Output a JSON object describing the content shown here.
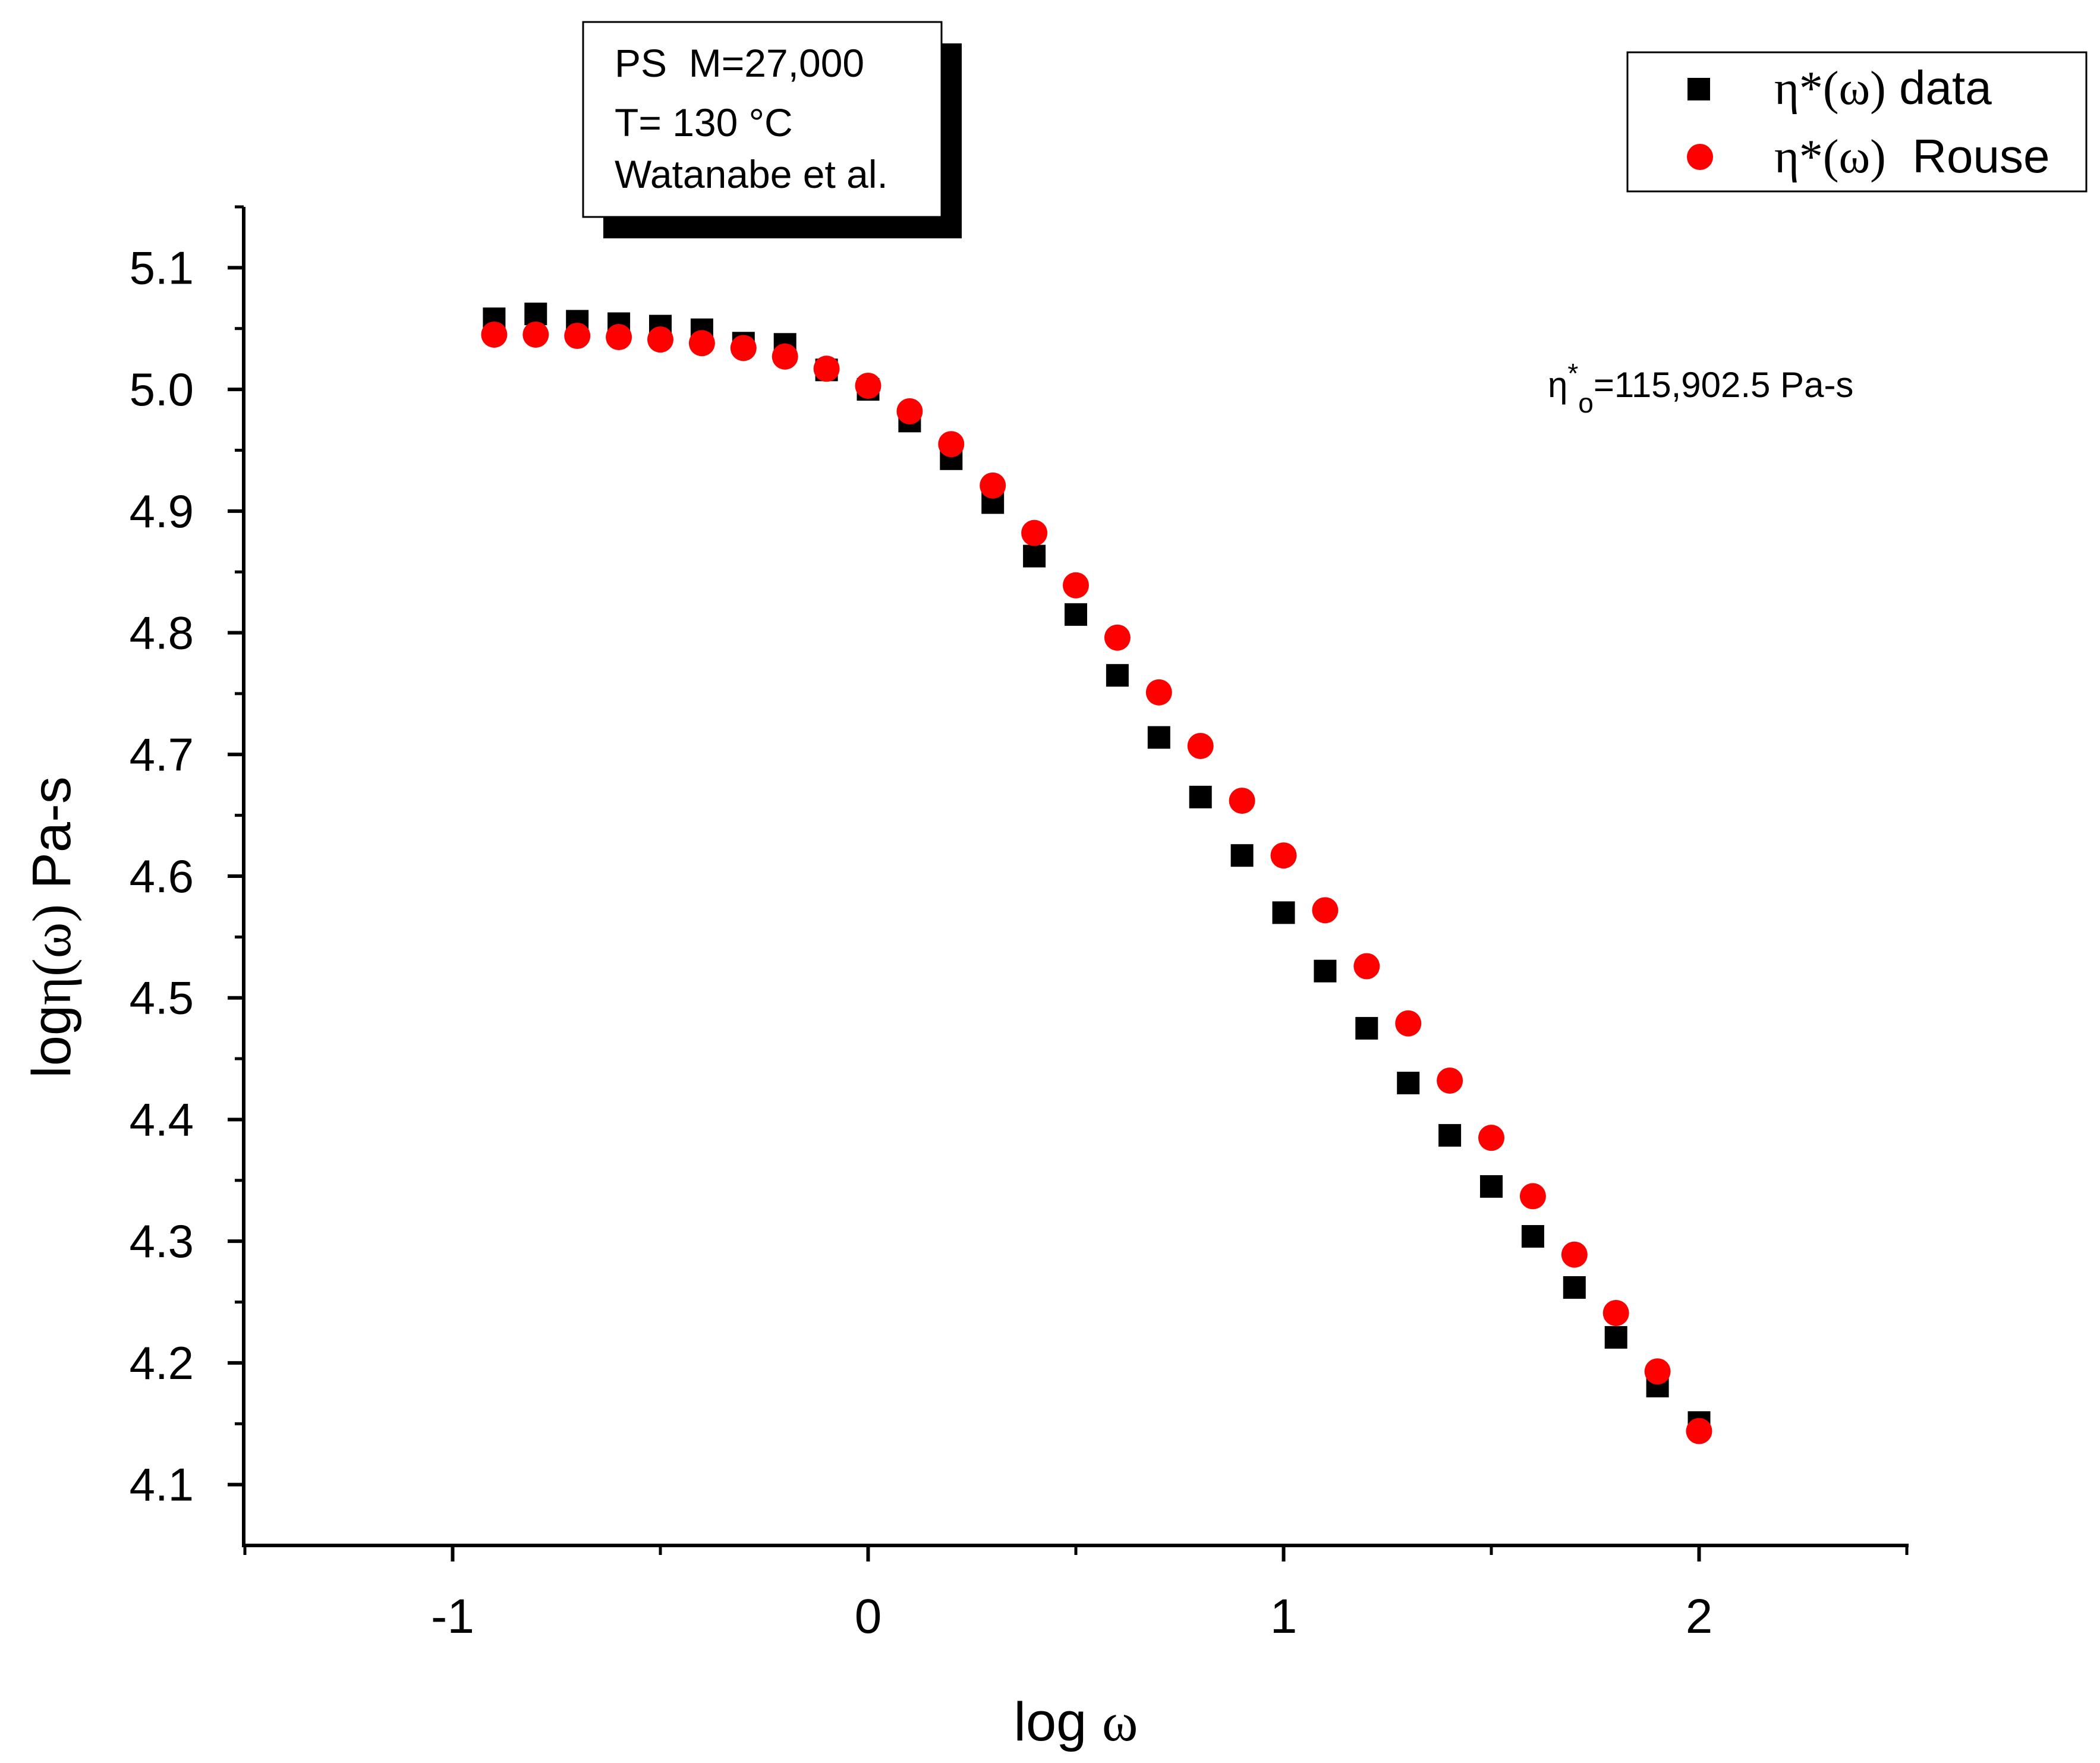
{
  "chart_data": {
    "type": "scatter",
    "title": "",
    "xlabel": {
      "prefix": "log ",
      "symbol": "ω"
    },
    "ylabel": {
      "prefix": "log",
      "symbol": "η(ω)",
      "suffix": " Pa-s"
    },
    "xlim": [
      -1.5,
      2.5
    ],
    "ylim": [
      4.05,
      5.15
    ],
    "x_ticks": [
      -1,
      0,
      1,
      2
    ],
    "x_tick_labels": [
      "-1",
      "0",
      "1",
      "2"
    ],
    "y_ticks": [
      4.1,
      4.2,
      4.3,
      4.4,
      4.5,
      4.6,
      4.7,
      4.8,
      4.9,
      5.0,
      5.1
    ],
    "y_tick_labels": [
      "4.1",
      "4.2",
      "4.3",
      "4.4",
      "4.5",
      "4.6",
      "4.7",
      "4.8",
      "4.9",
      "5.0",
      "5.1"
    ],
    "grid": false,
    "legend_position": "top-right",
    "x": [
      -0.9,
      -0.8,
      -0.7,
      -0.6,
      -0.5,
      -0.4,
      -0.3,
      -0.2,
      -0.1,
      0.0,
      0.1,
      0.2,
      0.3,
      0.4,
      0.5,
      0.6,
      0.7,
      0.8,
      0.9,
      1.0,
      1.1,
      1.2,
      1.3,
      1.4,
      1.5,
      1.6,
      1.7,
      1.8,
      1.9,
      2.0
    ],
    "series": [
      {
        "name": "η*(ω) data",
        "legend_symbol": "η*(ω)",
        "legend_label": "data",
        "marker": "square",
        "color": "#000000",
        "values": [
          5.058,
          5.062,
          5.056,
          5.054,
          5.052,
          5.049,
          5.038,
          5.037,
          5.016,
          5.0,
          4.974,
          4.943,
          4.907,
          4.863,
          4.815,
          4.765,
          4.714,
          4.665,
          4.617,
          4.57,
          4.522,
          4.475,
          4.43,
          4.387,
          4.345,
          4.304,
          4.262,
          4.221,
          4.181,
          4.151
        ]
      },
      {
        "name": "η*(ω) Rouse",
        "legend_symbol": "η*(ω)",
        "legend_label": "Rouse",
        "marker": "circle",
        "color": "#ff0000",
        "values": [
          5.045,
          5.045,
          5.044,
          5.043,
          5.041,
          5.038,
          5.034,
          5.027,
          5.017,
          5.003,
          4.982,
          4.955,
          4.921,
          4.882,
          4.839,
          4.796,
          4.751,
          4.707,
          4.662,
          4.617,
          4.572,
          4.526,
          4.479,
          4.432,
          4.385,
          4.337,
          4.289,
          4.241,
          4.193,
          4.144
        ]
      }
    ],
    "annotations": {
      "info_box": [
        "PS  M=27,000",
        "T= 130 °C",
        "Watanabe et al."
      ],
      "zero_shear": "η*o=115,902.5 Pa-s"
    }
  }
}
